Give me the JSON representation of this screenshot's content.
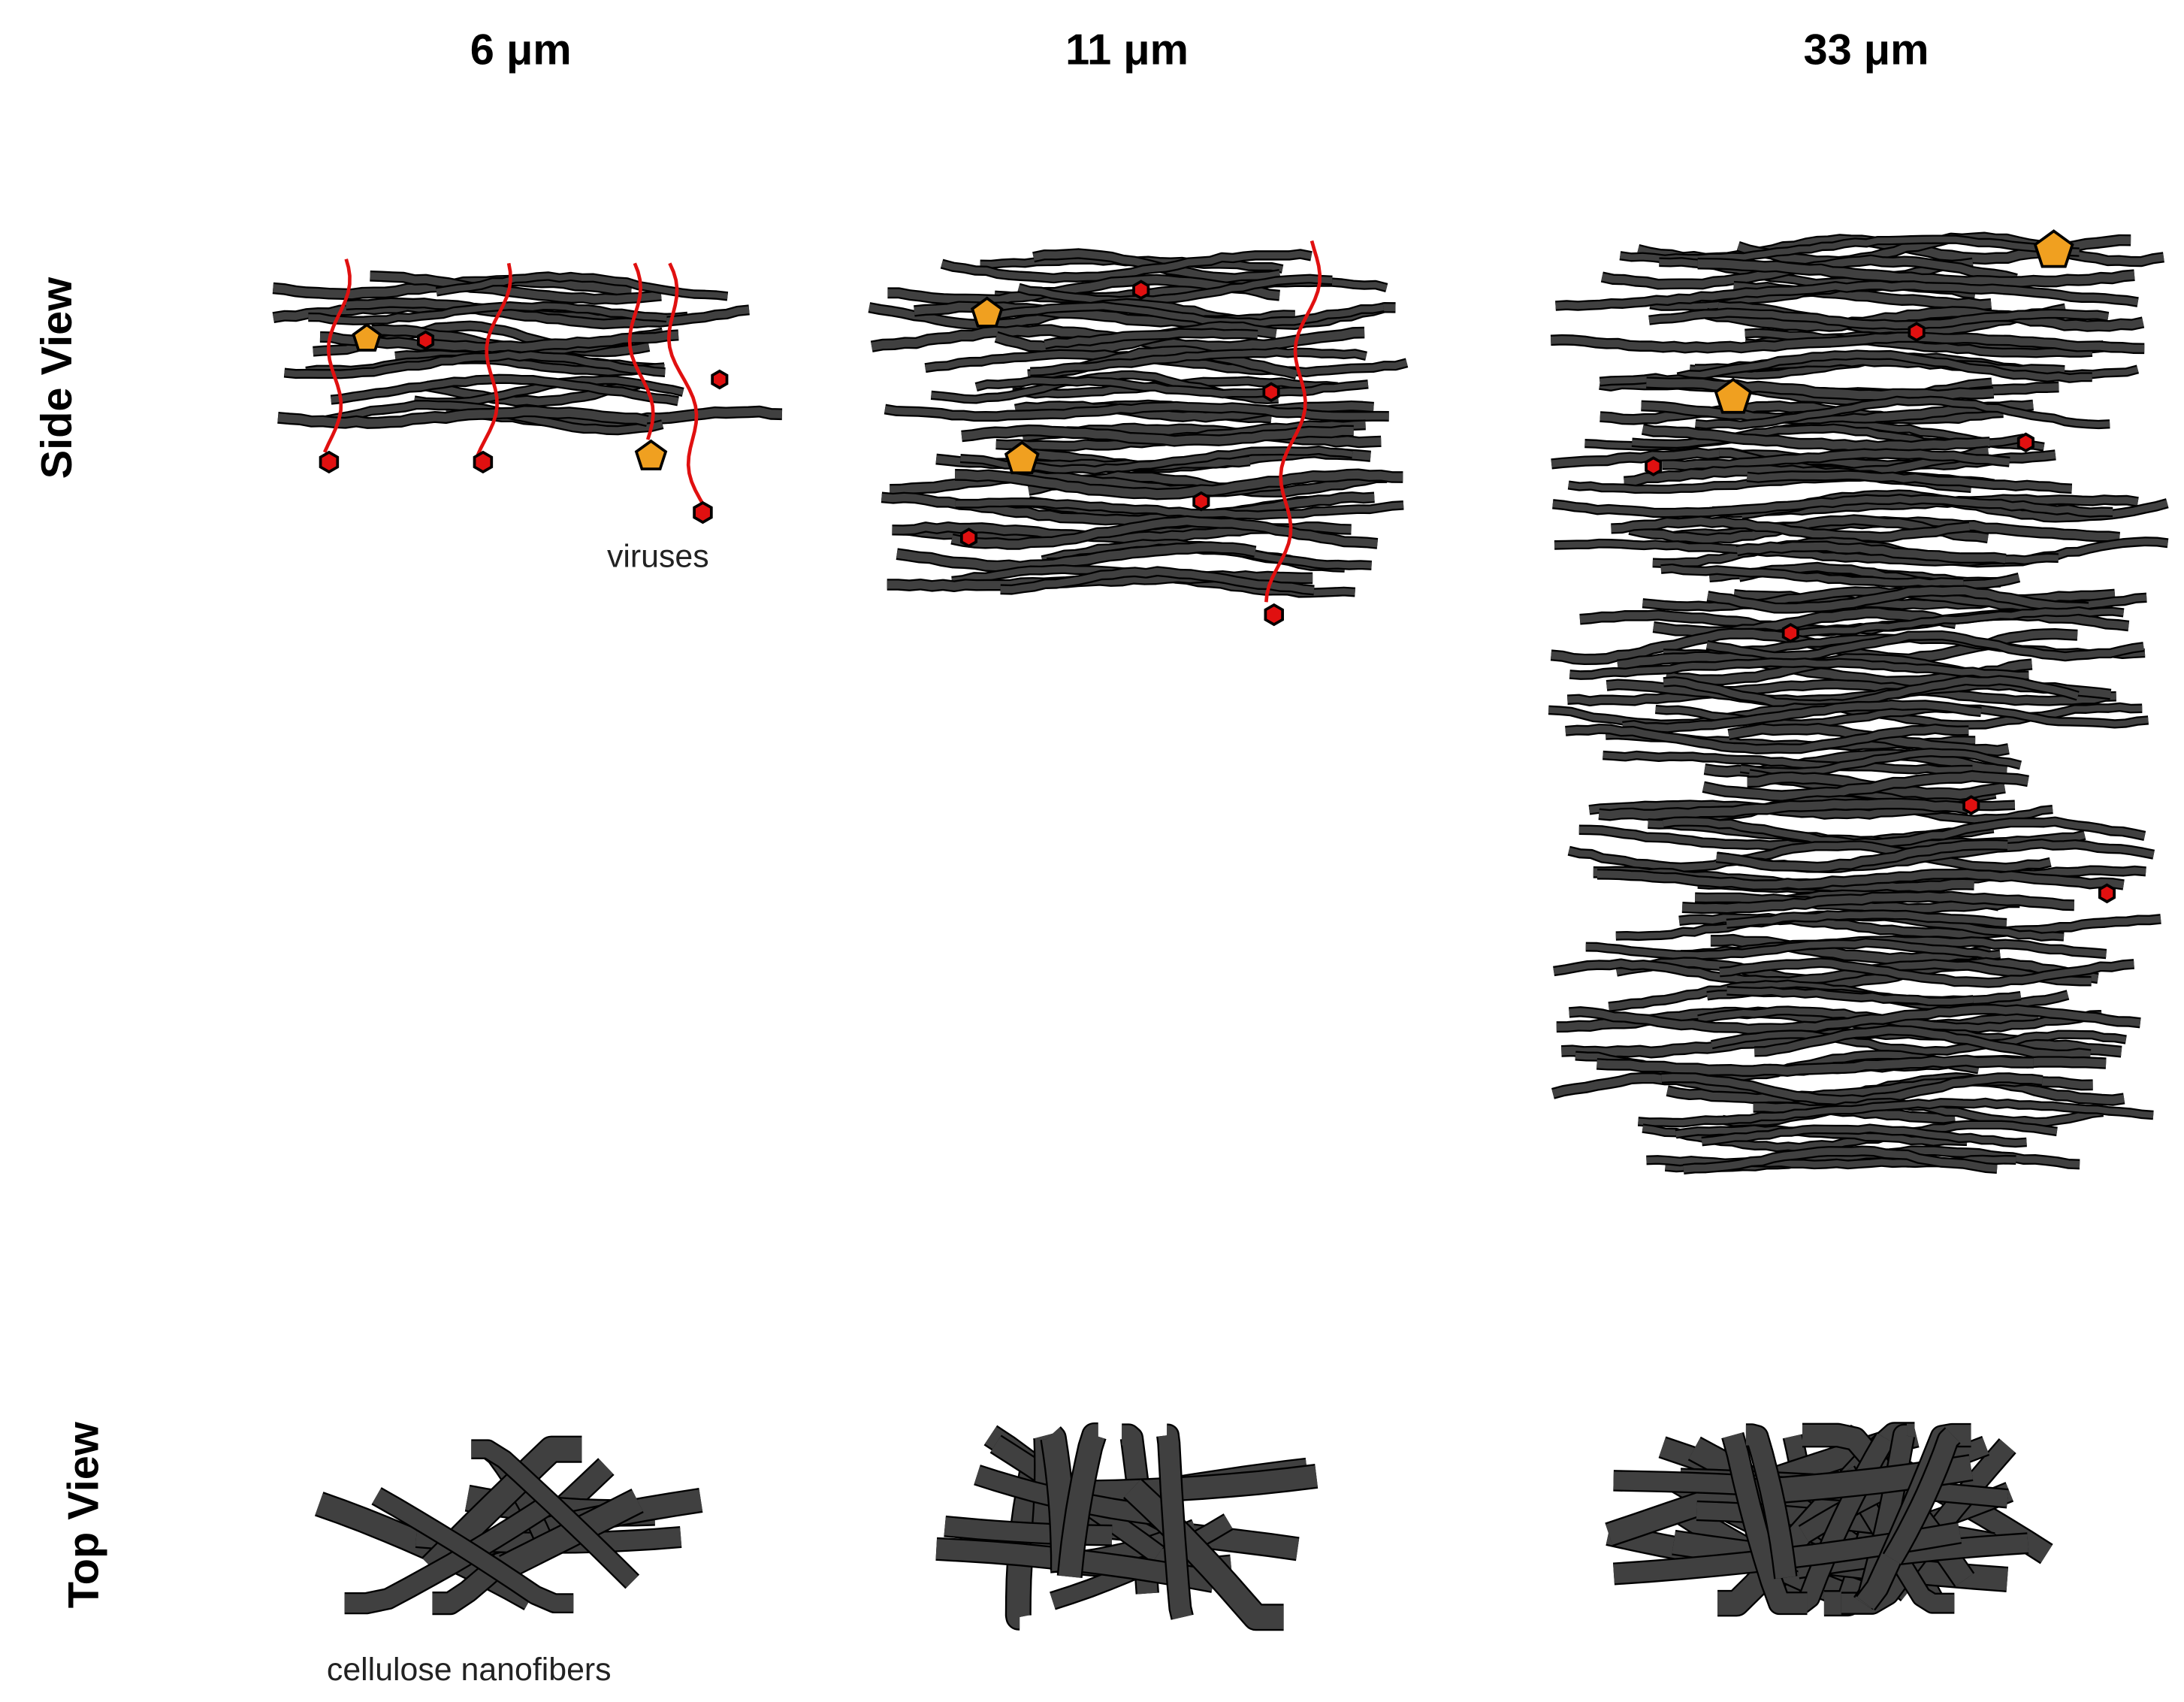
{
  "columns": [
    {
      "label": "6 μm"
    },
    {
      "label": "11 μm"
    },
    {
      "label": "33 μm"
    }
  ],
  "rows": [
    {
      "label": "Side View"
    },
    {
      "label": "Top View"
    }
  ],
  "annotations": {
    "viruses": "viruses",
    "fibers": "cellulose nanofibers"
  }
}
